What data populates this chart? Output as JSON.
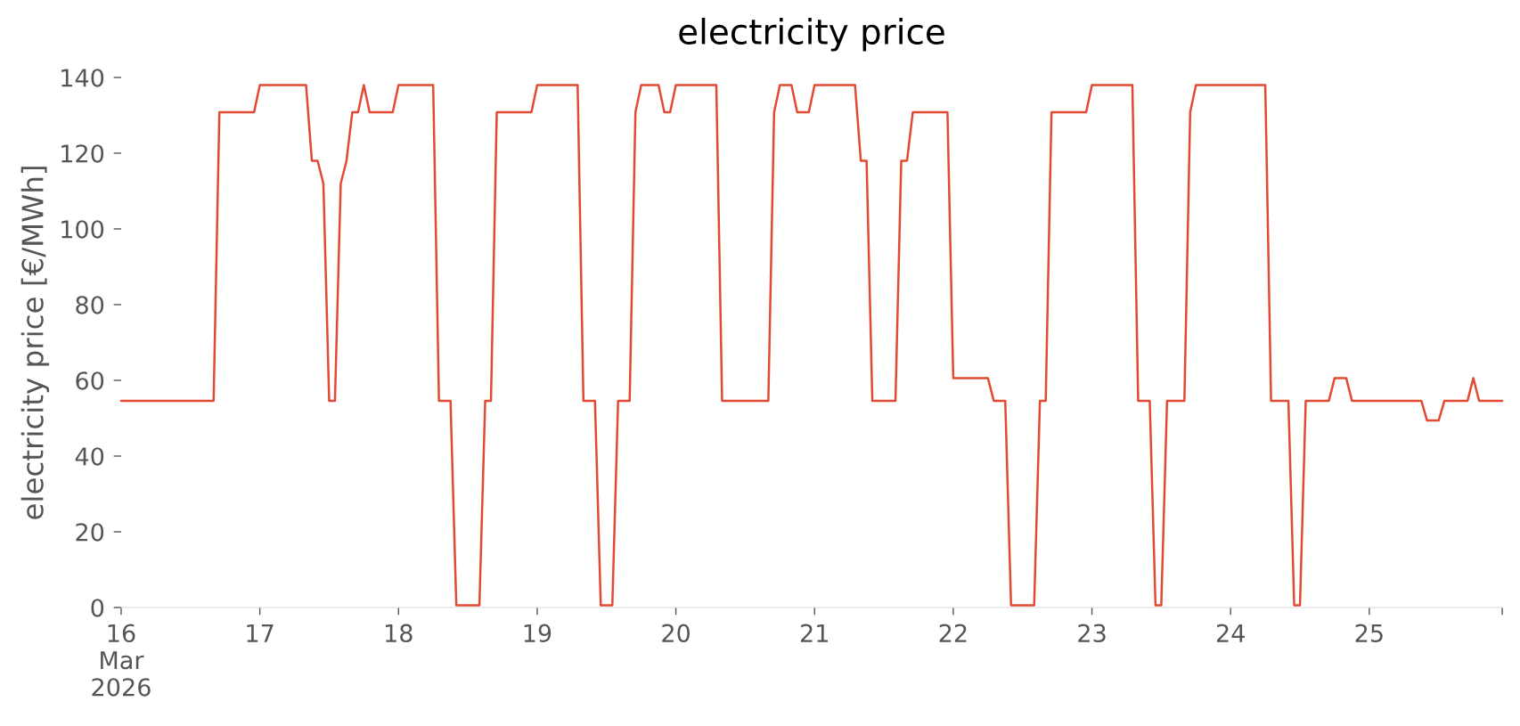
{
  "chart_data": {
    "type": "line",
    "title": "electricity price",
    "ylabel": "electricity price [€/MWh]",
    "color": "#e24a33",
    "x": [
      "2026-03-16T00:00",
      "2026-03-16T16:00",
      "2026-03-16T17:00",
      "2026-03-16T23:00",
      "2026-03-17T00:00",
      "2026-03-17T08:00",
      "2026-03-17T09:00",
      "2026-03-17T10:00",
      "2026-03-17T11:00",
      "2026-03-17T12:00",
      "2026-03-17T13:00",
      "2026-03-17T14:00",
      "2026-03-17T15:00",
      "2026-03-17T16:00",
      "2026-03-17T17:00",
      "2026-03-17T18:00",
      "2026-03-17T19:00",
      "2026-03-17T23:00",
      "2026-03-18T00:00",
      "2026-03-18T06:00",
      "2026-03-18T07:00",
      "2026-03-18T09:00",
      "2026-03-18T10:00",
      "2026-03-18T14:00",
      "2026-03-18T15:00",
      "2026-03-18T16:00",
      "2026-03-18T17:00",
      "2026-03-18T23:00",
      "2026-03-19T00:00",
      "2026-03-19T07:00",
      "2026-03-19T08:00",
      "2026-03-19T10:00",
      "2026-03-19T11:00",
      "2026-03-19T13:00",
      "2026-03-19T14:00",
      "2026-03-19T16:00",
      "2026-03-19T17:00",
      "2026-03-19T18:00",
      "2026-03-19T21:00",
      "2026-03-19T22:00",
      "2026-03-19T23:00",
      "2026-03-20T00:00",
      "2026-03-20T07:00",
      "2026-03-20T08:00",
      "2026-03-20T16:00",
      "2026-03-20T17:00",
      "2026-03-20T18:00",
      "2026-03-20T20:00",
      "2026-03-20T21:00",
      "2026-03-20T23:00",
      "2026-03-21T00:00",
      "2026-03-21T07:00",
      "2026-03-21T08:00",
      "2026-03-21T09:00",
      "2026-03-21T10:00",
      "2026-03-21T14:00",
      "2026-03-21T15:00",
      "2026-03-21T16:00",
      "2026-03-21T17:00",
      "2026-03-21T23:00",
      "2026-03-22T00:00",
      "2026-03-22T06:00",
      "2026-03-22T07:00",
      "2026-03-22T09:00",
      "2026-03-22T10:00",
      "2026-03-22T14:00",
      "2026-03-22T15:00",
      "2026-03-22T16:00",
      "2026-03-22T17:00",
      "2026-03-22T23:00",
      "2026-03-23T00:00",
      "2026-03-23T07:00",
      "2026-03-23T08:00",
      "2026-03-23T10:00",
      "2026-03-23T11:00",
      "2026-03-23T12:00",
      "2026-03-23T13:00",
      "2026-03-23T16:00",
      "2026-03-23T17:00",
      "2026-03-23T18:00",
      "2026-03-24T06:00",
      "2026-03-24T07:00",
      "2026-03-24T10:00",
      "2026-03-24T11:00",
      "2026-03-24T12:00",
      "2026-03-24T13:00",
      "2026-03-24T17:00",
      "2026-03-24T18:00",
      "2026-03-24T20:00",
      "2026-03-24T21:00",
      "2026-03-25T09:00",
      "2026-03-25T10:00",
      "2026-03-25T12:00",
      "2026-03-25T13:00",
      "2026-03-25T17:00",
      "2026-03-25T18:00",
      "2026-03-25T19:00",
      "2026-03-25T23:00"
    ],
    "values": [
      54.6,
      54.6,
      130.8,
      130.8,
      138,
      138,
      118,
      118,
      112,
      54.6,
      54.6,
      112,
      118,
      130.8,
      130.8,
      138,
      130.8,
      130.8,
      138,
      138,
      54.6,
      54.6,
      0.6,
      0.6,
      54.6,
      54.6,
      130.8,
      130.8,
      138,
      138,
      54.6,
      54.6,
      0.6,
      0.6,
      54.6,
      54.6,
      130.8,
      138,
      138,
      130.8,
      130.8,
      138,
      138,
      54.6,
      54.6,
      130.8,
      138,
      138,
      130.8,
      130.8,
      138,
      138,
      118,
      118,
      54.6,
      54.6,
      118,
      118,
      130.8,
      130.8,
      60.6,
      60.6,
      54.6,
      54.6,
      0.6,
      0.6,
      54.6,
      54.6,
      130.8,
      130.8,
      138,
      138,
      54.6,
      54.6,
      0.6,
      0.6,
      54.6,
      54.6,
      130.8,
      138,
      138,
      54.6,
      54.6,
      0.6,
      0.6,
      54.6,
      54.6,
      60.6,
      60.6,
      54.6,
      54.6,
      49.4,
      49.4,
      54.6,
      54.6,
      60.6,
      54.6,
      54.6
    ],
    "xlim": [
      "2026-03-16T00:00",
      "2026-03-25T23:00"
    ],
    "xticks": [
      {
        "value": "2026-03-16",
        "label": "16\nMar\n2026"
      },
      {
        "value": "2026-03-17",
        "label": "17"
      },
      {
        "value": "2026-03-18",
        "label": "18"
      },
      {
        "value": "2026-03-19",
        "label": "19"
      },
      {
        "value": "2026-03-20",
        "label": "20"
      },
      {
        "value": "2026-03-21",
        "label": "21"
      },
      {
        "value": "2026-03-22",
        "label": "22"
      },
      {
        "value": "2026-03-23",
        "label": "23"
      },
      {
        "value": "2026-03-24",
        "label": "24"
      },
      {
        "value": "2026-03-25",
        "label": "25"
      },
      {
        "value": "2026-03-25T23:00",
        "label": null
      }
    ],
    "ylim": [
      0,
      140
    ],
    "yticks": [
      0,
      20,
      40,
      60,
      80,
      100,
      120,
      140
    ]
  }
}
